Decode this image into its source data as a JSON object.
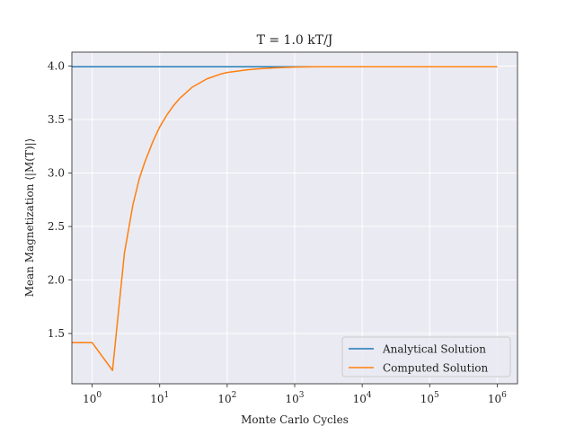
{
  "chart_data": {
    "type": "line",
    "title": "T = 1.0 kT/J",
    "xlabel": "Monte Carlo Cycles",
    "ylabel": "Mean Magnetization ⟨|M(T)|⟩",
    "xscale": "log",
    "xlim": [
      0.5,
      2000000
    ],
    "ylim": [
      1.03,
      4.13
    ],
    "x_ticks": [
      {
        "value": 1,
        "exp": "0"
      },
      {
        "value": 10,
        "exp": "1"
      },
      {
        "value": 100,
        "exp": "2"
      },
      {
        "value": 1000,
        "exp": "3"
      },
      {
        "value": 10000,
        "exp": "4"
      },
      {
        "value": 100000,
        "exp": "5"
      },
      {
        "value": 1000000,
        "exp": "6"
      }
    ],
    "x_tick_base": "10",
    "y_ticks": [
      1.5,
      2.0,
      2.5,
      3.0,
      3.5,
      4.0
    ],
    "y_tick_labels": [
      "1.5",
      "2.0",
      "2.5",
      "3.0",
      "3.5",
      "4.0"
    ],
    "grid": true,
    "legend_position": "lower-right",
    "series": [
      {
        "name": "Analytical Solution",
        "color": "#1f77b4",
        "x": [
          0.5,
          1000000
        ],
        "y": [
          3.9933,
          3.9933
        ]
      },
      {
        "name": "Computed Solution",
        "color": "#ff7f0e",
        "x": [
          0.5,
          1,
          2,
          3,
          4,
          5,
          6,
          8,
          10,
          13,
          16,
          20,
          30,
          50,
          80,
          100,
          200,
          300,
          500,
          1000,
          2000,
          5000,
          10000,
          100000,
          1000000
        ],
        "y": [
          1.414,
          1.414,
          1.155,
          2.25,
          2.7,
          2.95,
          3.1,
          3.3,
          3.43,
          3.55,
          3.63,
          3.7,
          3.8,
          3.88,
          3.925,
          3.94,
          3.965,
          3.975,
          3.983,
          3.99,
          3.993,
          3.993,
          3.993,
          3.993,
          3.993
        ]
      }
    ]
  }
}
